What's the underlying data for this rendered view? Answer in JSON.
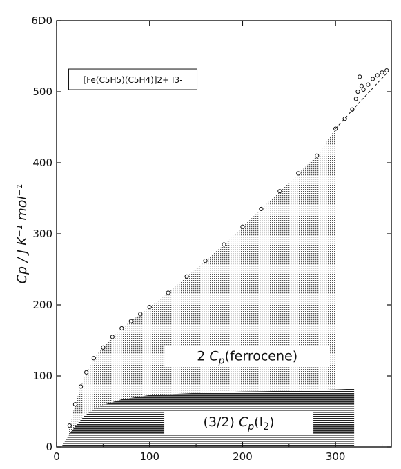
{
  "chart_data": {
    "type": "area",
    "title": "",
    "xlabel": "T / K",
    "ylabel": "Cp / J K⁻¹ mol⁻¹",
    "xlim": [
      0,
      360
    ],
    "ylim": [
      0,
      600
    ],
    "x_ticks": [
      0,
      100,
      200,
      300
    ],
    "x_tick_labels": [
      "0",
      "100",
      "200",
      "300"
    ],
    "y_ticks": [
      0,
      100,
      200,
      300,
      400,
      500,
      600
    ],
    "y_tick_labels": [
      "0",
      "100",
      "200",
      "300",
      "400",
      "500",
      "6D0"
    ],
    "grid": false,
    "compound_label": "[Fe(C5H5)(C5H4)]2+ I3-",
    "series": [
      {
        "name": "[Fe(C5H5)(C5H4)]2+ I3-",
        "style": "open-circles",
        "x": [
          14,
          20,
          26,
          32,
          40,
          50,
          60,
          70,
          80,
          90,
          100,
          120,
          140,
          160,
          180,
          200,
          220,
          240,
          260,
          280,
          300,
          310,
          318,
          322,
          324,
          326,
          328,
          330,
          335,
          340,
          345,
          350,
          355
        ],
        "y": [
          30,
          60,
          85,
          105,
          125,
          140,
          155,
          167,
          177,
          187,
          197,
          217,
          240,
          262,
          285,
          310,
          335,
          360,
          385,
          410,
          448,
          462,
          475,
          490,
          500,
          521,
          508,
          503,
          510,
          518,
          523,
          527,
          530
        ]
      },
      {
        "name": "baseline",
        "style": "dashed",
        "x": [
          300,
          325,
          355
        ],
        "y": [
          448,
          484,
          526
        ]
      }
    ],
    "regions": [
      {
        "label_prefix": "2 ",
        "label_symbol": "C",
        "label_subscript": "p",
        "label_suffix": "(ferrocene)",
        "x": [
          10,
          14,
          20,
          26,
          32,
          40,
          50,
          60,
          70,
          80,
          90,
          100,
          120,
          140,
          160,
          180,
          200,
          220,
          240,
          260,
          280,
          300
        ],
        "y": [
          0,
          30,
          60,
          85,
          105,
          125,
          140,
          155,
          167,
          177,
          187,
          197,
          217,
          240,
          262,
          285,
          310,
          335,
          360,
          385,
          410,
          448
        ]
      },
      {
        "label_prefix": "(3/2) ",
        "label_symbol": "C",
        "label_subscript": "p",
        "label_suffix": "(I",
        "label_suffix_sub": "2",
        "label_end": ")",
        "x": [
          5,
          10,
          15,
          20,
          30,
          40,
          50,
          60,
          70,
          100,
          150,
          200,
          250,
          300,
          320
        ],
        "y": [
          0,
          10,
          20,
          29,
          44,
          53,
          59,
          63,
          67,
          73,
          76,
          78,
          79,
          81,
          82
        ]
      }
    ]
  }
}
